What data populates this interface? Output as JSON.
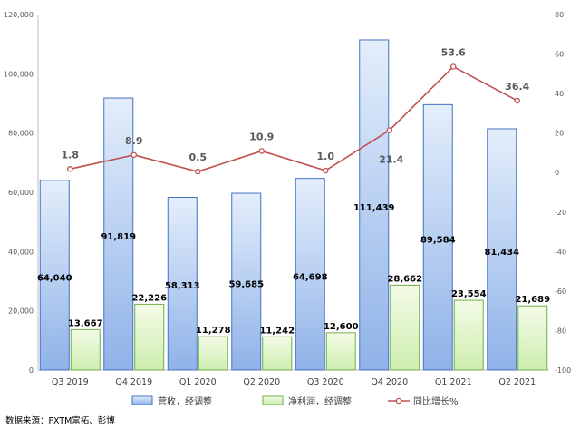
{
  "chart_data": {
    "type": "bar",
    "categories": [
      "Q3 2019",
      "Q4 2019",
      "Q1 2020",
      "Q2 2020",
      "Q3 2020",
      "Q4 2020",
      "Q1 2021",
      "Q2 2021"
    ],
    "series": [
      {
        "name": "营收，经调整",
        "type": "bar",
        "axis": "left",
        "values": [
          64040,
          91819,
          58313,
          59685,
          64698,
          111439,
          89584,
          81434
        ],
        "labels": [
          "64,040",
          "91,819",
          "58,313",
          "59,685",
          "64,698",
          "111,439",
          "89,584",
          "81,434"
        ],
        "color": "#9dc3e6"
      },
      {
        "name": "净利润，经调整",
        "type": "bar",
        "axis": "left",
        "values": [
          13667,
          22226,
          11278,
          11242,
          12600,
          28662,
          23554,
          21689
        ],
        "labels": [
          "13,667",
          "22,226",
          "11,278",
          "11,242",
          "12,600",
          "28,662",
          "23,554",
          "21,689"
        ],
        "color": "#d9f2b8"
      },
      {
        "name": "同比增长%",
        "type": "line",
        "axis": "right",
        "values": [
          1.8,
          8.9,
          0.5,
          10.9,
          1.0,
          21.4,
          53.6,
          36.4
        ],
        "labels": [
          "1.8",
          "8.9",
          "0.5",
          "10.9",
          "1.0",
          "21.4",
          "53.6",
          "36.4"
        ],
        "color": "#c0504d"
      }
    ],
    "y_left": {
      "ylim": [
        0,
        120000
      ],
      "ticks": [
        "0",
        "20,000",
        "40,000",
        "60,000",
        "80,000",
        "100,000",
        "120,000"
      ],
      "tick_values": [
        0,
        20000,
        40000,
        60000,
        80000,
        100000,
        120000
      ]
    },
    "y_right": {
      "ylim": [
        -100,
        80
      ],
      "ticks": [
        "-100",
        "-80",
        "-60",
        "-40",
        "-20",
        "0",
        "20",
        "40",
        "60",
        "80"
      ],
      "tick_values": [
        -100,
        -80,
        -60,
        -40,
        -20,
        0,
        20,
        40,
        60,
        80
      ]
    },
    "title": "",
    "xlabel": "",
    "ylabel": "",
    "grid": false,
    "legend_position": "bottom"
  },
  "source_note": "数据来源：FXTM富拓、彭博"
}
